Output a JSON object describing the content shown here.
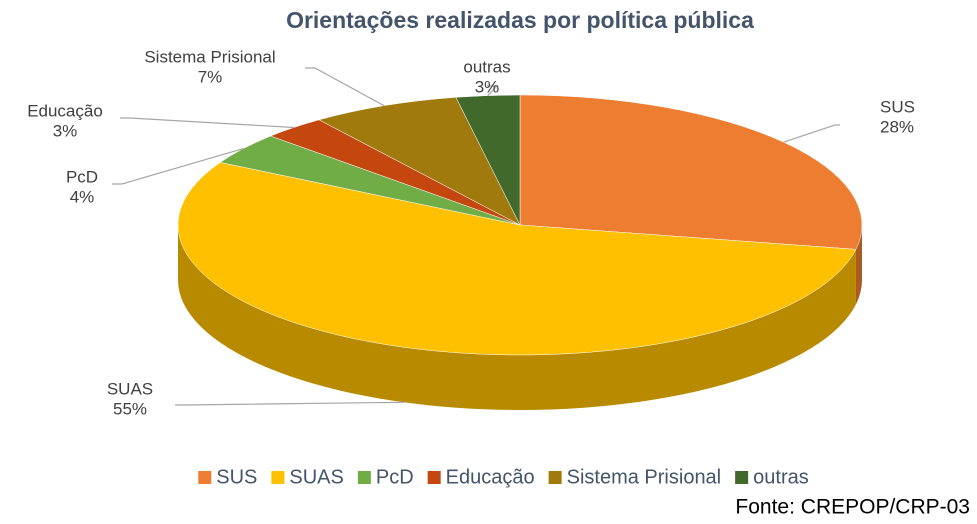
{
  "chart_data": {
    "type": "pie",
    "title": "Orientações realizadas por política pública",
    "categories": [
      "SUS",
      "SUAS",
      "PcD",
      "Educação",
      "Sistema Prisional",
      "outras"
    ],
    "values": [
      28,
      55,
      4,
      3,
      7,
      3
    ],
    "value_labels": [
      "28%",
      "55%",
      "4%",
      "3%",
      "7%",
      "3%"
    ],
    "colors": [
      "#ed7d31",
      "#ffc000",
      "#70ad47",
      "#c4470f",
      "#a07a0c",
      "#41692b"
    ],
    "legend": "bottom",
    "source": "Fonte: CREPOP/CRP-03"
  }
}
